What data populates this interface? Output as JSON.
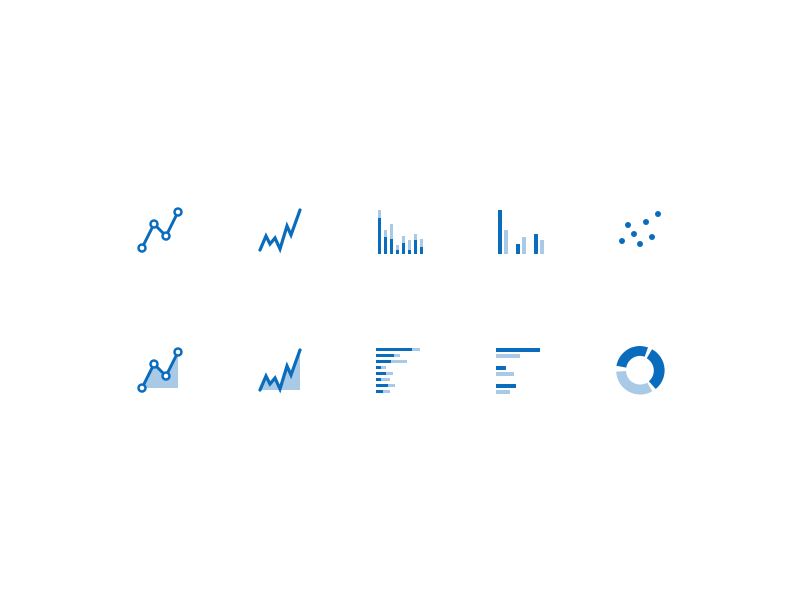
{
  "colors": {
    "primary": "#0a6cbd",
    "secondary": "#a9cae6"
  },
  "icons": [
    {
      "name": "line-chart-with-markers-icon"
    },
    {
      "name": "jagged-line-chart-icon"
    },
    {
      "name": "grouped-column-chart-many-icon"
    },
    {
      "name": "grouped-column-chart-few-icon"
    },
    {
      "name": "scatter-plot-icon"
    },
    {
      "name": "area-chart-with-markers-icon"
    },
    {
      "name": "jagged-area-chart-icon"
    },
    {
      "name": "grouped-bar-chart-many-icon"
    },
    {
      "name": "grouped-bar-chart-few-icon"
    },
    {
      "name": "donut-chart-icon"
    }
  ]
}
